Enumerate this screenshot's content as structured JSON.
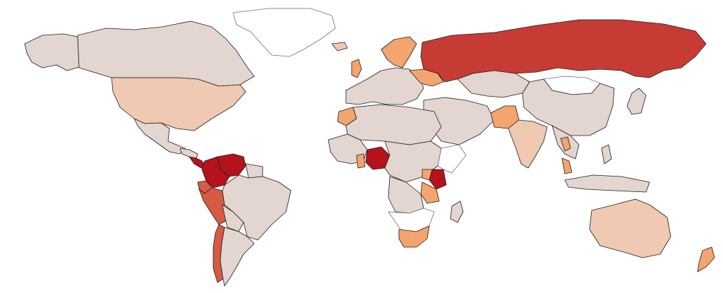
{
  "colors": {
    "background": "#ffffff",
    "border": "#1e1e1e",
    "no_data": "#ffffff",
    "scale": {
      "0": "#e3d5cf",
      "1": "#f0c9b2",
      "2": "#f4a46e",
      "3": "#d65a44",
      "4": "#c73b35",
      "5": "#b5121d"
    }
  },
  "map": {
    "type": "choropleth",
    "projection": "world",
    "legend": "none",
    "regions": [
      {
        "id": "greenland",
        "level": "none"
      },
      {
        "id": "alaska",
        "level": 0
      },
      {
        "id": "canada",
        "level": 0
      },
      {
        "id": "usa",
        "level": 1
      },
      {
        "id": "mexico",
        "level": 0
      },
      {
        "id": "central-america",
        "level": 0
      },
      {
        "id": "panama-costa-rica",
        "level": 5
      },
      {
        "id": "colombia",
        "level": 5
      },
      {
        "id": "venezuela",
        "level": 5
      },
      {
        "id": "peru",
        "level": 3
      },
      {
        "id": "ecuador",
        "level": 3
      },
      {
        "id": "chile",
        "level": 3
      },
      {
        "id": "brazil",
        "level": 0
      },
      {
        "id": "argentina",
        "level": 0
      },
      {
        "id": "bolivia",
        "level": 0
      },
      {
        "id": "guianas",
        "level": 0
      },
      {
        "id": "russia",
        "level": 4
      },
      {
        "id": "ukraine",
        "level": 2
      },
      {
        "id": "uk",
        "level": 2
      },
      {
        "id": "scandinavia",
        "level": 2
      },
      {
        "id": "iceland",
        "level": 1
      },
      {
        "id": "europe",
        "level": 0
      },
      {
        "id": "china",
        "level": 0
      },
      {
        "id": "mongolia",
        "level": "none"
      },
      {
        "id": "kazakhstan",
        "level": 0
      },
      {
        "id": "middle-east",
        "level": 0
      },
      {
        "id": "pakistan",
        "level": 2
      },
      {
        "id": "india",
        "level": 1
      },
      {
        "id": "southeast-asia",
        "level": 0
      },
      {
        "id": "thailand",
        "level": 2
      },
      {
        "id": "malaysia",
        "level": 2
      },
      {
        "id": "indonesia",
        "level": 0
      },
      {
        "id": "philippines",
        "level": 0
      },
      {
        "id": "japan",
        "level": 0
      },
      {
        "id": "australia",
        "level": 1
      },
      {
        "id": "new-zealand",
        "level": 2
      },
      {
        "id": "north-africa",
        "level": 0
      },
      {
        "id": "morocco",
        "level": 2
      },
      {
        "id": "west-africa",
        "level": 0
      },
      {
        "id": "ghana",
        "level": 2
      },
      {
        "id": "nigeria",
        "level": 5
      },
      {
        "id": "central-africa",
        "level": 0
      },
      {
        "id": "somalia-region",
        "level": "none"
      },
      {
        "id": "kenya",
        "level": 5
      },
      {
        "id": "tanzania",
        "level": 2
      },
      {
        "id": "uganda",
        "level": 2
      },
      {
        "id": "angola-region",
        "level": 0
      },
      {
        "id": "southern-africa",
        "level": "none"
      },
      {
        "id": "south-africa",
        "level": 2
      },
      {
        "id": "madagascar",
        "level": 0
      }
    ]
  }
}
